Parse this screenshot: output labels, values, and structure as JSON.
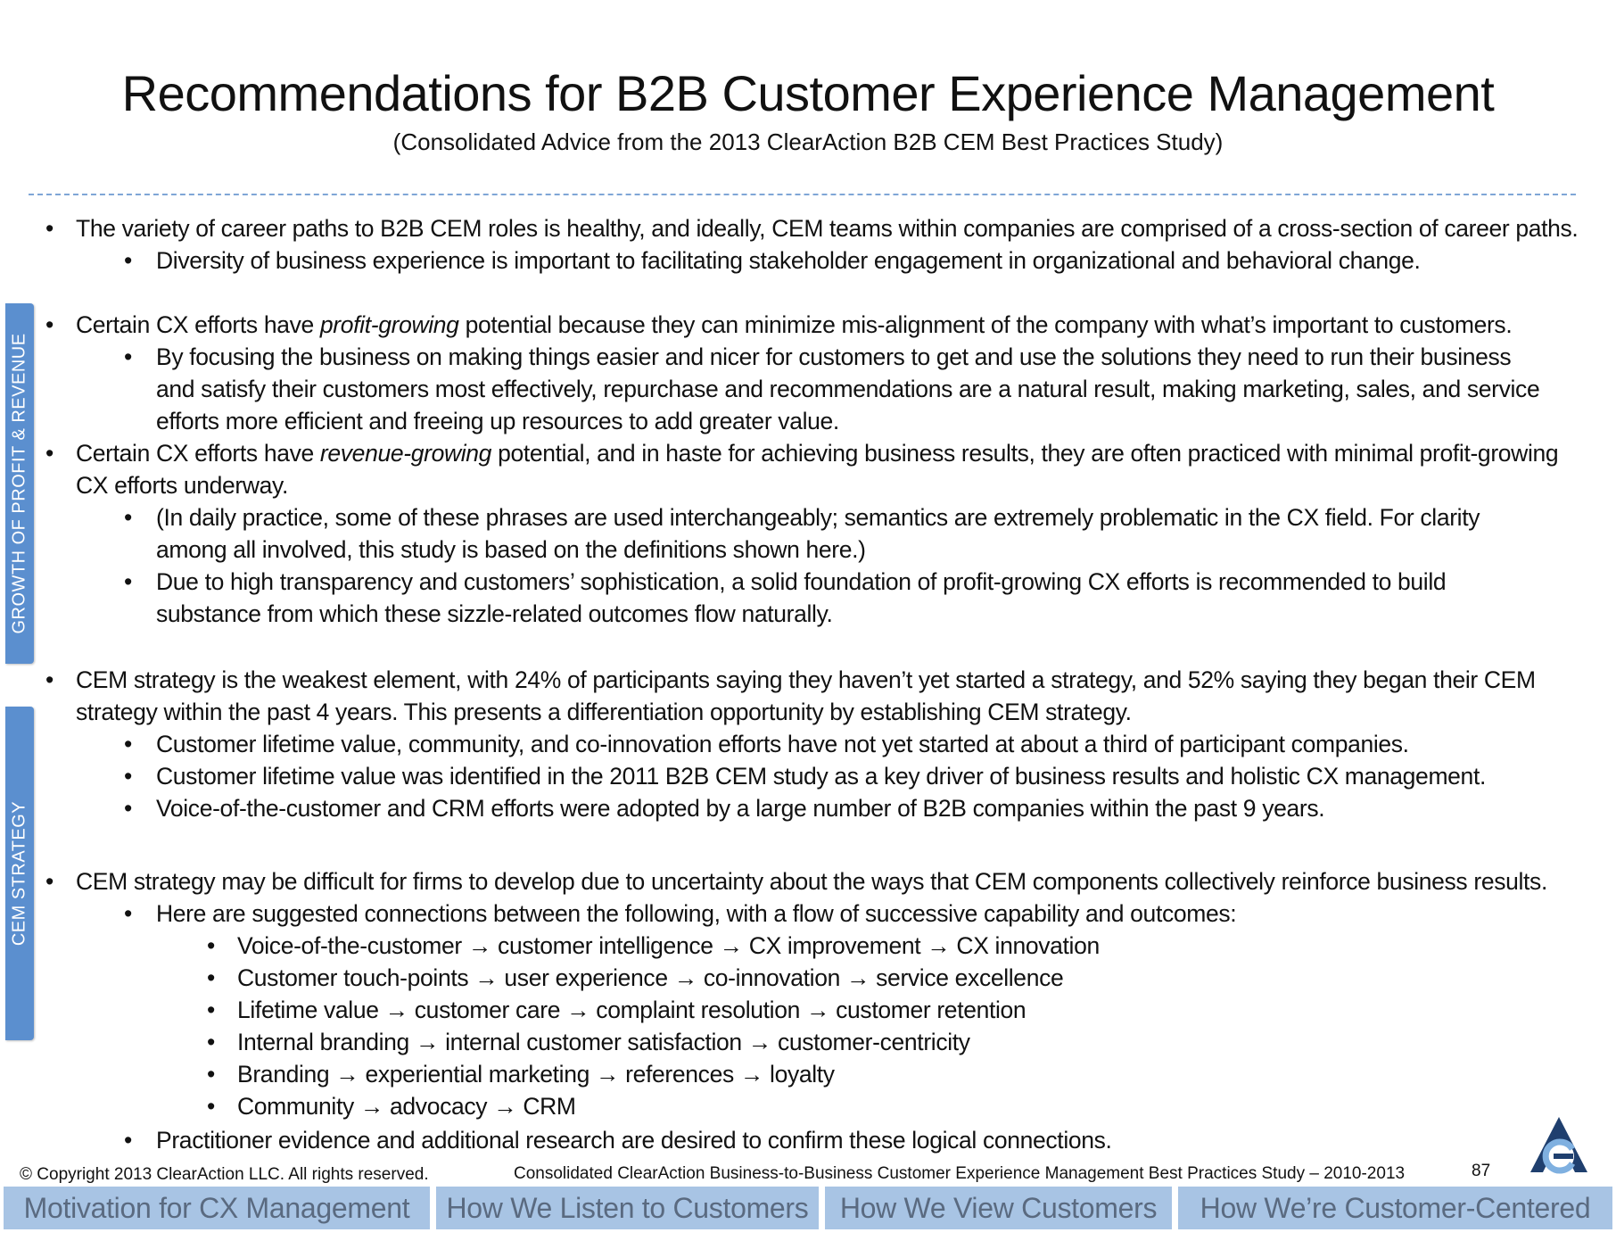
{
  "title": "Recommendations for B2B Customer Experience Management",
  "subtitle": "(Consolidated Advice from the 2013 ClearAction B2B CEM Best Practices Study)",
  "side_tabs": [
    "GROWTH OF PROFIT & REVENUE",
    "CEM STRATEGY"
  ],
  "bullets": {
    "b1": "The variety of career paths to B2B CEM roles is healthy, and ideally, CEM teams within companies are comprised of a cross-section of career paths.",
    "b1a": "Diversity of business experience is important to facilitating stakeholder engagement in organizational and behavioral change.",
    "b2_pre": "Certain CX efforts have ",
    "b2_em": "profit-growing",
    "b2_post": " potential because they can minimize mis-alignment of the company with what’s important to customers.",
    "b2a": "By focusing the business on making things easier and nicer for customers to get and use the solutions they need to run their business and satisfy their customers most effectively, repurchase and recommendations are a natural result, making marketing, sales, and service efforts more efficient and freeing up resources to add greater value.",
    "b3_pre": "Certain CX efforts have ",
    "b3_em": "revenue-growing",
    "b3_post": " potential, and in haste for achieving business results, they are often practiced with minimal profit-growing CX efforts underway.",
    "b3a": "(In daily practice, some of these phrases are used interchangeably; semantics are extremely problematic in the CX field. For clarity among all involved, this study is based on the definitions shown here.)",
    "b3b": "Due to high transparency and customers’ sophistication, a solid foundation of profit-growing CX efforts is recommended to build substance from which these sizzle-related outcomes flow naturally.",
    "b4": "CEM strategy is the weakest element, with 24% of participants saying they haven’t yet started a strategy, and 52% saying they began their CEM strategy within the past 4 years. This presents a differentiation opportunity by establishing CEM strategy.",
    "b4a": "Customer lifetime value, community, and co-innovation efforts have not yet started at about a third of participant companies.",
    "b4b": "Customer lifetime value was identified in the 2011 B2B CEM study as a key driver of business results and holistic CX management.",
    "b4c": "Voice-of-the-customer and CRM efforts were adopted by a large number of B2B companies within the past 9 years.",
    "b5": "CEM strategy may be difficult for firms to develop due to uncertainty about the ways that CEM components collectively reinforce business results.",
    "b5a": "Here are suggested connections between the following, with a flow of successive capability and outcomes:",
    "b5a_items": [
      " Voice-of-the-customer → customer intelligence → CX improvement → CX innovation",
      "Customer touch-points → user experience → co-innovation → service excellence",
      "Lifetime value → customer care → complaint resolution → customer retention",
      "Internal branding → internal customer satisfaction → customer-centricity",
      "Branding → experiential marketing → references → loyalty",
      "Community → advocacy → CRM"
    ],
    "b5b": "Practitioner evidence and additional research are desired to confirm these logical connections."
  },
  "footer": {
    "copyright": "© Copyright 2013 ClearAction LLC. All rights reserved.",
    "study": "Consolidated ClearAction Business-to-Business Customer Experience Management Best Practices Study – 2010-2013",
    "page": "87"
  },
  "nav_tabs": [
    "Motivation for CX Management",
    "How We Listen to Customers",
    "How We View Customers",
    "How We’re Customer-Centered"
  ],
  "colors": {
    "accent": "#5b8fcf",
    "nav_bg": "#a8c4e4",
    "nav_text": "#5a6a80",
    "divider": "#7fa6d6",
    "logo_dark": "#1f3f6e",
    "logo_light": "#7fb0e0"
  },
  "icons": {
    "logo": "clearaction-logo-icon"
  }
}
